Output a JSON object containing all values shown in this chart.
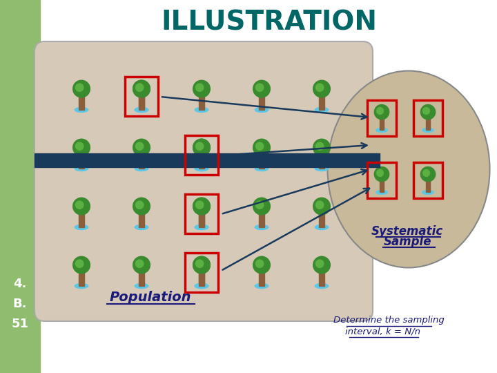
{
  "title": "ILLUSTRATION",
  "title_color": "#006666",
  "title_fontsize": 28,
  "bg_color": "#ffffff",
  "left_bar_color": "#8fbc6e",
  "slide_num": "4.\nB.\n51",
  "pop_label": "Population",
  "sys_label_line1": "Systematic",
  "sys_label_line2": "Sample",
  "bottom_text_line1": "Determine the sampling",
  "bottom_text_line2": "interval, k = N/n",
  "pop_box_color": "#d6c9b8",
  "sample_ellipse_color": "#c8b99a",
  "arrow_color": "#1a3a5c",
  "red_box_color": "#cc0000",
  "dark_bar_color": "#1a3a5c",
  "trunk_color": "#8B5E3C",
  "frond_color": "#3a8a2e",
  "water_color": "#5bc8e8",
  "text_color": "#1a1a7a"
}
